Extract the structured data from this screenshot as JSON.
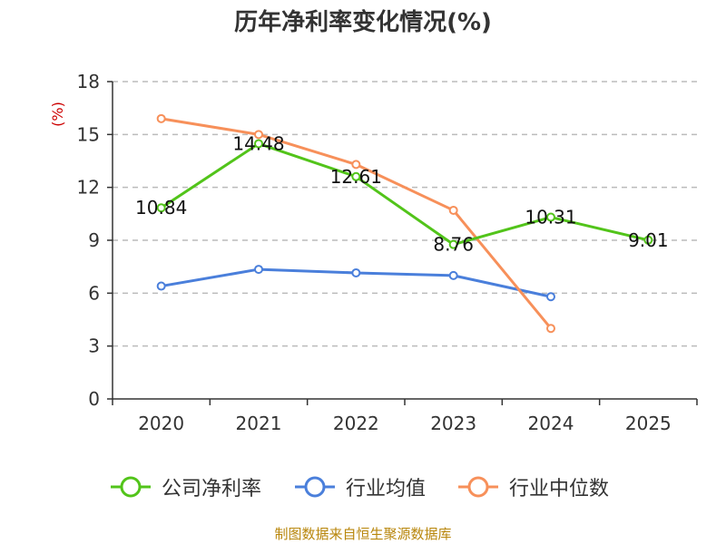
{
  "chart_data": {
    "type": "line",
    "title": "历年净利率变化情况(%)",
    "ylabel": "(%)",
    "xlabel": "",
    "ylim": [
      0,
      18
    ],
    "yticks": [
      0,
      3,
      6,
      9,
      12,
      15,
      18
    ],
    "categories": [
      "2020",
      "2021",
      "2022",
      "2023",
      "2024",
      "2025"
    ],
    "grid": true,
    "legend_position": "bottom",
    "series": [
      {
        "name": "公司净利率",
        "color": "#52c41a",
        "values": [
          10.84,
          14.48,
          12.61,
          8.76,
          10.31,
          9.01
        ],
        "labels": [
          "10.84",
          "14.48",
          "12.61",
          "8.76",
          "10.31",
          "9.01"
        ]
      },
      {
        "name": "行业均值",
        "color": "#4a7fdb",
        "values": [
          6.4,
          7.35,
          7.15,
          7.0,
          5.8,
          null
        ]
      },
      {
        "name": "行业中位数",
        "color": "#f7905a",
        "values": [
          15.9,
          15.0,
          13.3,
          10.7,
          4.0,
          null
        ]
      }
    ],
    "source": "制图数据来自恒生聚源数据库"
  }
}
